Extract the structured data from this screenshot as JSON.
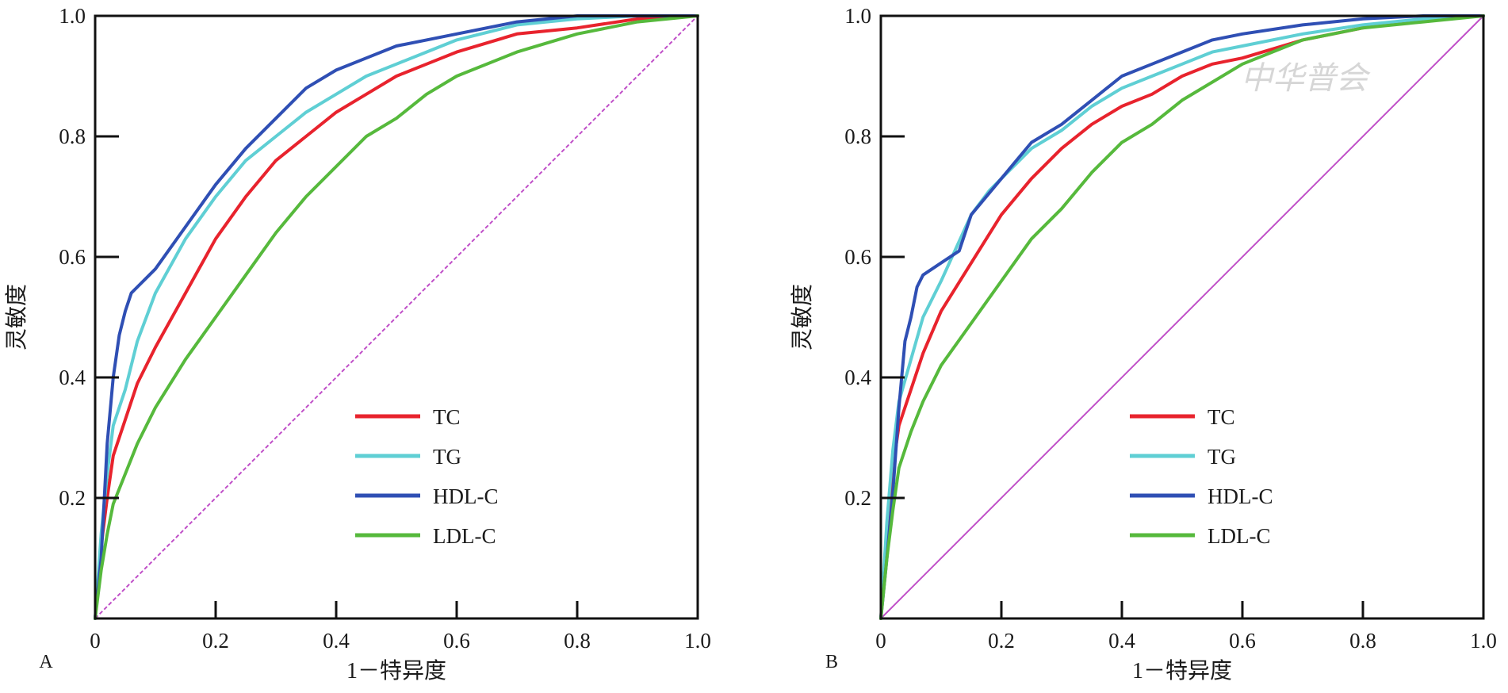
{
  "chart_data": [
    {
      "type": "line",
      "panel_label": "A",
      "xlabel": "1－特异度",
      "ylabel": "灵敏度",
      "xlim": [
        0,
        1
      ],
      "ylim": [
        0,
        1
      ],
      "x_ticks": [
        0,
        0.2,
        0.4,
        0.6,
        0.8,
        1.0
      ],
      "x_tick_labels": [
        "0",
        "0.2",
        "0.4",
        "0.6",
        "0.8",
        "1.0"
      ],
      "y_ticks": [
        0.2,
        0.4,
        0.6,
        0.8,
        1.0
      ],
      "y_tick_labels": [
        "0.2",
        "0.4",
        "0.6",
        "0.8",
        "1.0"
      ],
      "legend_position": "bottom-right",
      "reference_line": {
        "style": "dashed",
        "color": "#c04fc8",
        "x": [
          0,
          1
        ],
        "y": [
          0,
          1
        ]
      },
      "series": [
        {
          "name": "TC",
          "color": "#e8232d",
          "x": [
            0,
            0.01,
            0.02,
            0.03,
            0.05,
            0.07,
            0.1,
            0.15,
            0.2,
            0.25,
            0.3,
            0.35,
            0.4,
            0.45,
            0.5,
            0.55,
            0.6,
            0.7,
            0.8,
            0.9,
            1.0
          ],
          "y": [
            0,
            0.12,
            0.2,
            0.27,
            0.33,
            0.39,
            0.45,
            0.54,
            0.63,
            0.7,
            0.76,
            0.8,
            0.84,
            0.87,
            0.9,
            0.92,
            0.94,
            0.97,
            0.98,
            0.995,
            1.0
          ]
        },
        {
          "name": "TG",
          "color": "#5fcfd4",
          "x": [
            0,
            0.01,
            0.02,
            0.03,
            0.05,
            0.07,
            0.1,
            0.15,
            0.2,
            0.25,
            0.3,
            0.35,
            0.4,
            0.45,
            0.5,
            0.55,
            0.6,
            0.7,
            0.8,
            0.9,
            1.0
          ],
          "y": [
            0,
            0.14,
            0.24,
            0.32,
            0.38,
            0.46,
            0.54,
            0.63,
            0.7,
            0.76,
            0.8,
            0.84,
            0.87,
            0.9,
            0.92,
            0.94,
            0.96,
            0.985,
            0.995,
            1.0,
            1.0
          ]
        },
        {
          "name": "HDL-C",
          "color": "#2f4fb4",
          "x": [
            0,
            0.01,
            0.02,
            0.03,
            0.04,
            0.05,
            0.06,
            0.07,
            0.1,
            0.15,
            0.2,
            0.25,
            0.3,
            0.35,
            0.4,
            0.45,
            0.5,
            0.55,
            0.6,
            0.7,
            0.8,
            0.9,
            1.0
          ],
          "y": [
            0,
            0.1,
            0.29,
            0.4,
            0.47,
            0.51,
            0.54,
            0.55,
            0.58,
            0.65,
            0.72,
            0.78,
            0.83,
            0.88,
            0.91,
            0.93,
            0.95,
            0.96,
            0.97,
            0.99,
            1.0,
            1.0,
            1.0
          ]
        },
        {
          "name": "LDL-C",
          "color": "#56b93c",
          "x": [
            0,
            0.01,
            0.02,
            0.03,
            0.05,
            0.07,
            0.1,
            0.15,
            0.2,
            0.25,
            0.3,
            0.35,
            0.4,
            0.45,
            0.5,
            0.55,
            0.6,
            0.7,
            0.8,
            0.9,
            1.0
          ],
          "y": [
            0,
            0.08,
            0.14,
            0.19,
            0.24,
            0.29,
            0.35,
            0.43,
            0.5,
            0.57,
            0.64,
            0.7,
            0.75,
            0.8,
            0.83,
            0.87,
            0.9,
            0.94,
            0.97,
            0.99,
            1.0
          ]
        }
      ]
    },
    {
      "type": "line",
      "panel_label": "B",
      "xlabel": "1－特异度",
      "ylabel": "灵敏度",
      "xlim": [
        0,
        1
      ],
      "ylim": [
        0,
        1
      ],
      "x_ticks": [
        0,
        0.2,
        0.4,
        0.6,
        0.8,
        1.0
      ],
      "x_tick_labels": [
        "0",
        "0.2",
        "0.4",
        "0.6",
        "0.8",
        "1.0"
      ],
      "y_ticks": [
        0.2,
        0.4,
        0.6,
        0.8,
        1.0
      ],
      "y_tick_labels": [
        "0.2",
        "0.4",
        "0.6",
        "0.8",
        "1.0"
      ],
      "legend_position": "bottom-right",
      "reference_line": {
        "style": "solid",
        "color": "#c04fc8",
        "x": [
          0,
          1
        ],
        "y": [
          0,
          1
        ]
      },
      "series": [
        {
          "name": "TC",
          "color": "#e8232d",
          "x": [
            0,
            0.01,
            0.02,
            0.03,
            0.05,
            0.07,
            0.1,
            0.15,
            0.2,
            0.25,
            0.3,
            0.35,
            0.4,
            0.45,
            0.5,
            0.55,
            0.6,
            0.7,
            0.8,
            0.9,
            1.0
          ],
          "y": [
            0,
            0.15,
            0.25,
            0.32,
            0.38,
            0.44,
            0.51,
            0.59,
            0.67,
            0.73,
            0.78,
            0.82,
            0.85,
            0.87,
            0.9,
            0.92,
            0.93,
            0.96,
            0.98,
            0.995,
            1.0
          ]
        },
        {
          "name": "TG",
          "color": "#5fcfd4",
          "x": [
            0,
            0.01,
            0.02,
            0.03,
            0.05,
            0.07,
            0.1,
            0.15,
            0.18,
            0.2,
            0.25,
            0.3,
            0.35,
            0.4,
            0.45,
            0.5,
            0.55,
            0.6,
            0.7,
            0.8,
            0.9,
            1.0
          ],
          "y": [
            0,
            0.16,
            0.28,
            0.36,
            0.43,
            0.5,
            0.56,
            0.67,
            0.71,
            0.73,
            0.78,
            0.81,
            0.85,
            0.88,
            0.9,
            0.92,
            0.94,
            0.95,
            0.97,
            0.985,
            0.995,
            1.0
          ]
        },
        {
          "name": "HDL-C",
          "color": "#2f4fb4",
          "x": [
            0,
            0.01,
            0.02,
            0.03,
            0.04,
            0.05,
            0.06,
            0.07,
            0.1,
            0.13,
            0.15,
            0.2,
            0.25,
            0.3,
            0.35,
            0.4,
            0.45,
            0.5,
            0.55,
            0.6,
            0.7,
            0.8,
            0.9,
            1.0
          ],
          "y": [
            0,
            0.1,
            0.21,
            0.35,
            0.46,
            0.5,
            0.55,
            0.57,
            0.59,
            0.61,
            0.67,
            0.73,
            0.79,
            0.82,
            0.86,
            0.9,
            0.92,
            0.94,
            0.96,
            0.97,
            0.985,
            0.995,
            1.0,
            1.0
          ]
        },
        {
          "name": "LDL-C",
          "color": "#56b93c",
          "x": [
            0,
            0.01,
            0.02,
            0.03,
            0.05,
            0.07,
            0.1,
            0.15,
            0.2,
            0.25,
            0.3,
            0.35,
            0.4,
            0.45,
            0.5,
            0.55,
            0.6,
            0.7,
            0.8,
            0.9,
            1.0
          ],
          "y": [
            0,
            0.1,
            0.18,
            0.25,
            0.31,
            0.36,
            0.42,
            0.49,
            0.56,
            0.63,
            0.68,
            0.74,
            0.79,
            0.82,
            0.86,
            0.89,
            0.92,
            0.96,
            0.98,
            0.99,
            1.0
          ]
        }
      ]
    }
  ],
  "watermark": "中华普会"
}
